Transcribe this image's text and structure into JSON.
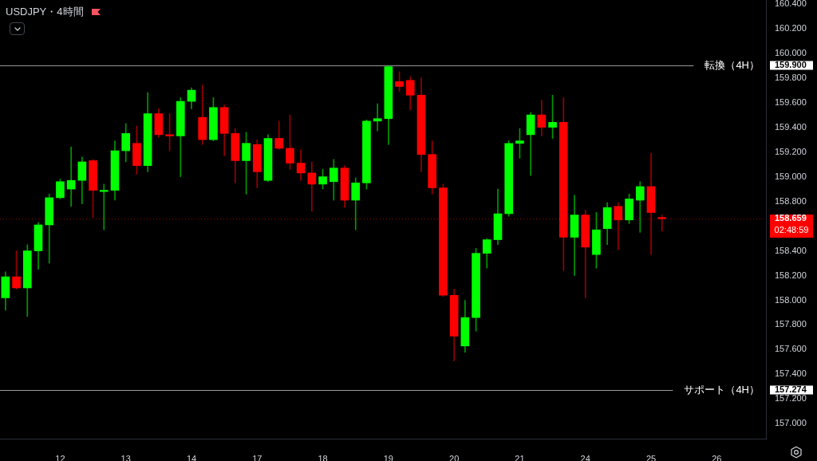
{
  "chart_data": {
    "type": "candlestick",
    "title": "USDJPY・4時間",
    "categories": [
      null,
      null,
      null,
      null,
      null,
      "12",
      null,
      null,
      null,
      null,
      null,
      "13",
      null,
      null,
      null,
      null,
      null,
      "14",
      null,
      null,
      null,
      null,
      null,
      "17",
      null,
      null,
      null,
      null,
      null,
      "18",
      null,
      null,
      null,
      null,
      null,
      "19",
      null,
      null,
      null,
      null,
      null,
      "20",
      null,
      null,
      null,
      null,
      null,
      "21",
      null,
      null,
      null,
      null,
      null,
      "24",
      null,
      null,
      null,
      null,
      null,
      "25",
      null,
      null,
      null,
      null,
      null,
      "26",
      null,
      null,
      null,
      null
    ],
    "ohlc": [
      [
        158.02,
        158.23,
        157.92,
        158.19
      ],
      [
        158.19,
        158.4,
        158.09,
        158.1
      ],
      [
        158.1,
        158.45,
        157.87,
        158.4
      ],
      [
        158.4,
        158.63,
        158.25,
        158.61
      ],
      [
        158.61,
        158.86,
        158.3,
        158.83
      ],
      [
        158.83,
        158.98,
        158.82,
        158.96
      ],
      [
        158.9,
        159.24,
        158.76,
        158.97
      ],
      [
        158.97,
        159.16,
        158.78,
        159.12
      ],
      [
        159.13,
        159.14,
        158.67,
        158.89
      ],
      [
        158.88,
        158.94,
        158.57,
        158.89
      ],
      [
        158.89,
        159.29,
        158.81,
        159.21
      ],
      [
        159.21,
        159.43,
        159.12,
        159.35
      ],
      [
        159.27,
        159.41,
        159.02,
        159.09
      ],
      [
        159.09,
        159.68,
        159.04,
        159.51
      ],
      [
        159.51,
        159.55,
        159.32,
        159.34
      ],
      [
        159.34,
        159.51,
        159.21,
        159.33
      ],
      [
        159.33,
        159.64,
        159.0,
        159.61
      ],
      [
        159.61,
        159.72,
        159.55,
        159.7
      ],
      [
        159.48,
        159.74,
        159.26,
        159.3
      ],
      [
        159.3,
        159.64,
        159.29,
        159.56
      ],
      [
        159.56,
        159.58,
        159.17,
        159.35
      ],
      [
        159.35,
        159.39,
        158.95,
        159.13
      ],
      [
        159.13,
        159.36,
        158.86,
        159.27
      ],
      [
        159.26,
        159.3,
        158.91,
        159.04
      ],
      [
        158.97,
        159.34,
        158.96,
        159.31
      ],
      [
        159.31,
        159.45,
        159.22,
        159.23
      ],
      [
        159.23,
        159.5,
        159.06,
        159.11
      ],
      [
        159.11,
        159.22,
        158.97,
        159.03
      ],
      [
        159.03,
        159.12,
        158.72,
        158.94
      ],
      [
        158.94,
        159.06,
        158.9,
        159.0
      ],
      [
        158.96,
        159.14,
        158.81,
        159.07
      ],
      [
        159.07,
        159.09,
        158.75,
        158.81
      ],
      [
        158.81,
        158.99,
        158.57,
        158.95
      ],
      [
        158.95,
        159.46,
        158.9,
        159.45
      ],
      [
        159.45,
        159.59,
        159.37,
        159.47
      ],
      [
        159.47,
        159.9,
        159.26,
        159.89
      ],
      [
        159.77,
        159.85,
        159.69,
        159.73
      ],
      [
        159.78,
        159.81,
        159.54,
        159.66
      ],
      [
        159.66,
        159.8,
        159.04,
        159.18
      ],
      [
        159.18,
        159.29,
        158.86,
        158.91
      ],
      [
        158.91,
        158.94,
        158.03,
        158.04
      ],
      [
        158.04,
        158.09,
        157.51,
        157.71
      ],
      [
        157.63,
        158.0,
        157.58,
        157.86
      ],
      [
        157.86,
        158.42,
        157.75,
        158.38
      ],
      [
        158.38,
        158.5,
        158.26,
        158.49
      ],
      [
        158.49,
        158.9,
        158.45,
        158.7
      ],
      [
        158.7,
        159.29,
        158.68,
        159.27
      ],
      [
        159.27,
        159.39,
        159.15,
        159.29
      ],
      [
        159.34,
        159.52,
        159.01,
        159.5
      ],
      [
        159.5,
        159.62,
        159.33,
        159.4
      ],
      [
        159.4,
        159.66,
        159.31,
        159.44
      ],
      [
        159.44,
        159.64,
        158.24,
        158.51
      ],
      [
        158.51,
        158.85,
        158.2,
        158.69
      ],
      [
        158.69,
        158.73,
        158.02,
        158.43
      ],
      [
        158.37,
        158.71,
        158.26,
        158.57
      ],
      [
        158.58,
        158.79,
        158.45,
        158.75
      ],
      [
        158.76,
        158.79,
        158.41,
        158.65
      ],
      [
        158.65,
        158.86,
        158.62,
        158.82
      ],
      [
        158.81,
        158.96,
        158.55,
        158.92
      ],
      [
        158.92,
        159.19,
        158.37,
        158.71
      ],
      [
        158.67,
        158.69,
        158.56,
        158.66
      ],
      null,
      null,
      null,
      null,
      null,
      null,
      null,
      null,
      null
    ],
    "colors": [
      "#00ff00",
      "#ff0000",
      "#00ff00",
      "#00ff00",
      "#00ff00",
      "#00ff00",
      "#00ff00",
      "#00ff00",
      "#ff0000",
      "#00ff00",
      "#00ff00",
      "#00ff00",
      "#ff0000",
      "#00ff00",
      "#ff0000",
      "#ff0000",
      "#00ff00",
      "#00ff00",
      "#ff0000",
      "#00ff00",
      "#ff0000",
      "#ff0000",
      "#00ff00",
      "#ff0000",
      "#00ff00",
      "#ff0000",
      "#ff0000",
      "#ff0000",
      "#ff0000",
      "#00ff00",
      "#00ff00",
      "#ff0000",
      "#00ff00",
      "#00ff00",
      "#00ff00",
      "#00ff00",
      "#ff0000",
      "#ff0000",
      "#ff0000",
      "#ff0000",
      "#ff0000",
      "#ff0000",
      "#00ff00",
      "#00ff00",
      "#00ff00",
      "#00ff00",
      "#00ff00",
      "#00ff00",
      "#00ff00",
      "#ff0000",
      "#00ff00",
      "#ff0000",
      "#00ff00",
      "#ff0000",
      "#00ff00",
      "#00ff00",
      "#ff0000",
      "#00ff00",
      "#00ff00",
      "#ff0000",
      "#ff0000",
      null,
      null,
      null,
      null,
      null,
      null,
      null,
      null,
      null
    ],
    "ylim": [
      156.88,
      160.43
    ],
    "yticks": [
      {
        "value": 157,
        "label": "157.000"
      },
      {
        "value": 157.2,
        "label": "157.200"
      },
      {
        "value": 157.274,
        "label": "157.274"
      },
      {
        "value": 157.4,
        "label": "157.400"
      },
      {
        "value": 157.6,
        "label": "157.600"
      },
      {
        "value": 157.8,
        "label": "157.800"
      },
      {
        "value": 158,
        "label": "158.000"
      },
      {
        "value": 158.2,
        "label": "158.200"
      },
      {
        "value": 158.4,
        "label": "158.400"
      },
      {
        "value": 158.659,
        "label": "158.659"
      },
      {
        "value": 158.8,
        "label": "158.800"
      },
      {
        "value": 159,
        "label": "159.000"
      },
      {
        "value": 159.2,
        "label": "159.200"
      },
      {
        "value": 159.4,
        "label": "159.400"
      },
      {
        "value": 159.6,
        "label": "159.600"
      },
      {
        "value": 159.8,
        "label": "159.800"
      },
      {
        "value": 159.9,
        "label": "159.900"
      },
      {
        "value": 160,
        "label": "160.000"
      },
      {
        "value": 160.2,
        "label": "160.200"
      },
      {
        "value": 160.4,
        "label": "160.400"
      }
    ],
    "ref_lines": [
      {
        "axis": "y",
        "value": 159.9,
        "label": "転換（4H）",
        "color": "#ffffff",
        "line_style": "solid"
      },
      {
        "axis": "y",
        "value": 157.274,
        "label": "サポート（4H）",
        "color": "#ffffff",
        "line_style": "solid"
      },
      {
        "axis": "y",
        "value": 158.659,
        "color": "#ff0000",
        "line_style": "dotted"
      }
    ],
    "annotations": [
      "02:48:59"
    ]
  }
}
